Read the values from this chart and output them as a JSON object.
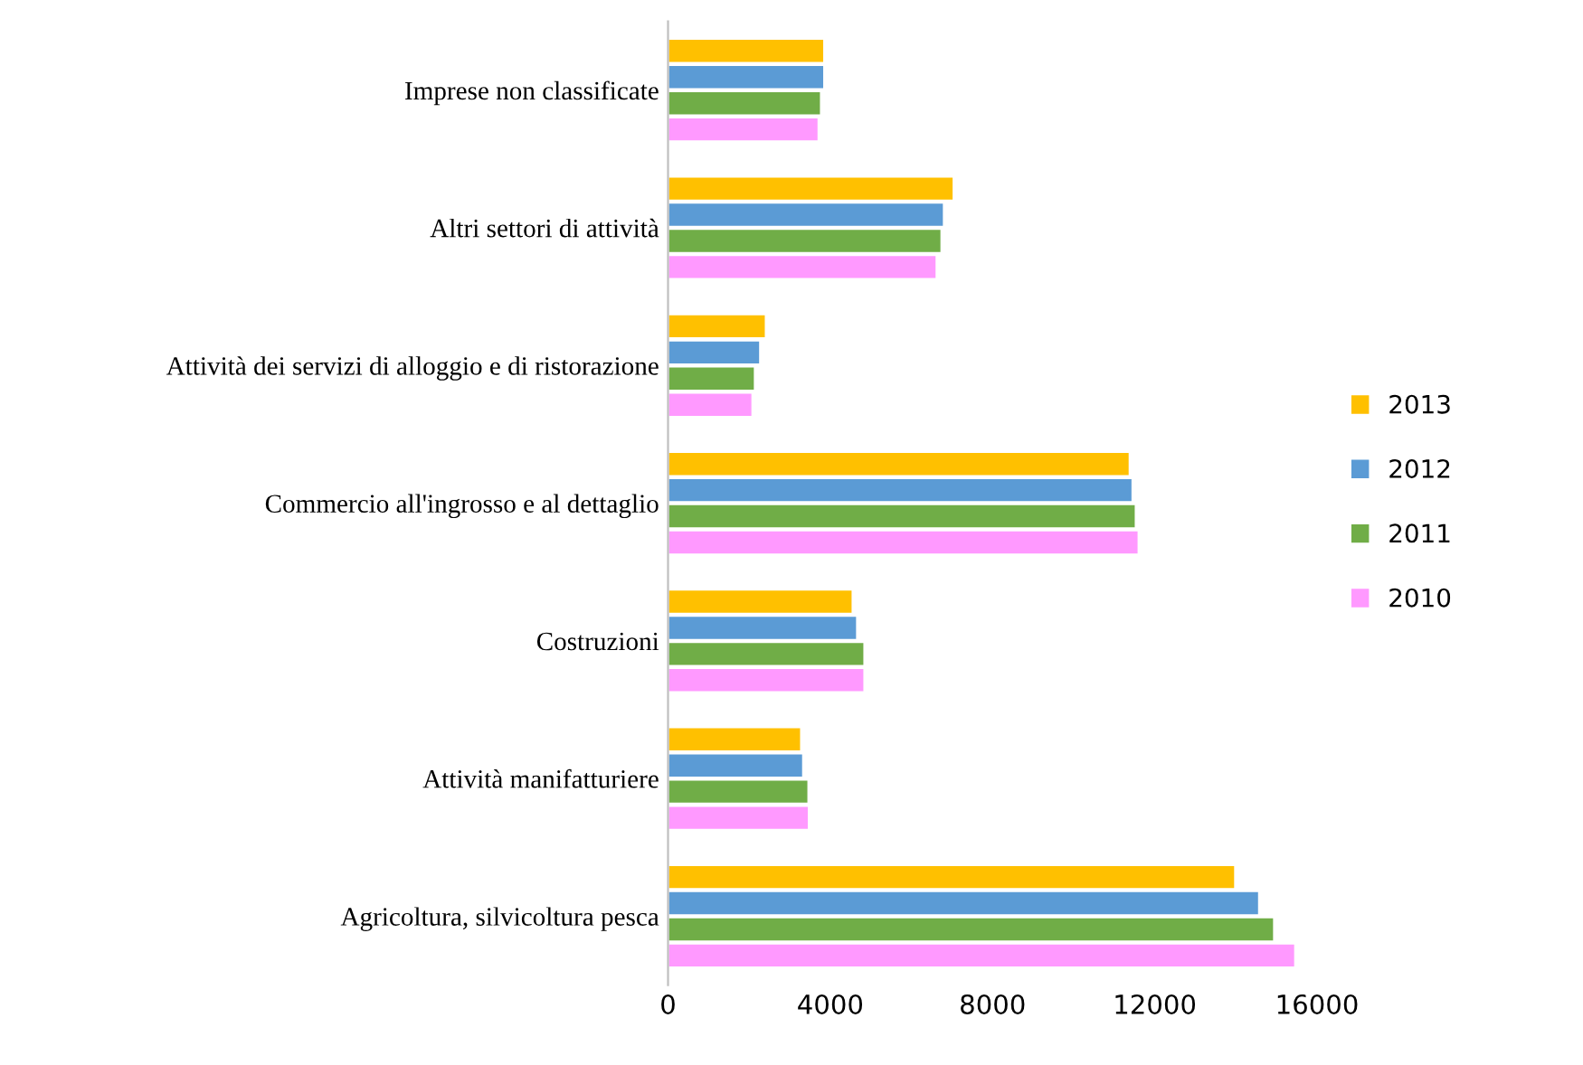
{
  "chart_data": {
    "type": "bar",
    "orientation": "horizontal",
    "categories": [
      "Imprese non classificate",
      "Altri settori di attività",
      "Attività dei servizi di alloggio e di ristorazione",
      "Commercio all'ingrosso e al dettaglio",
      "Costruzioni",
      "Attività manifatturiere",
      "Agricoltura, silvicoltura pesca"
    ],
    "series": [
      {
        "name": "2010",
        "color": "#ff99ff",
        "values": [
          3710,
          6620,
          2080,
          11600,
          4840,
          3470,
          15460
        ]
      },
      {
        "name": "2011",
        "color": "#70ad47",
        "values": [
          3770,
          6740,
          2140,
          11530,
          4840,
          3460,
          14940
        ]
      },
      {
        "name": "2012",
        "color": "#5b9bd5",
        "values": [
          3850,
          6800,
          2270,
          11450,
          4660,
          3330,
          14570
        ]
      },
      {
        "name": "2013",
        "color": "#ffc000",
        "values": [
          3850,
          7040,
          2410,
          11380,
          4550,
          3280,
          13980
        ]
      }
    ],
    "xlim": [
      0,
      16000
    ],
    "xticks": [
      0,
      4000,
      8000,
      12000,
      16000
    ],
    "grid": false,
    "legend": "right"
  }
}
